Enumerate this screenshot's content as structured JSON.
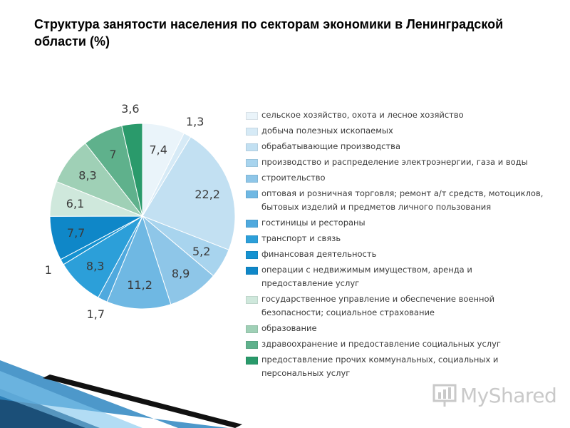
{
  "slide": {
    "title": "Структура занятости населения по секторам экономики в Ленинградской области (%)"
  },
  "watermark": {
    "text": "MyShared"
  },
  "chart_data": {
    "type": "pie",
    "title": "",
    "legend_position": "right",
    "slices": [
      {
        "label": "сельское хозяйство, охота и лесное хозяйство",
        "value": 7.4,
        "display": "7,4",
        "color": "#eaf4fa"
      },
      {
        "label": "добыча полезных ископаемых",
        "value": 1.3,
        "display": "1,3",
        "color": "#d6eaf6"
      },
      {
        "label": "обрабатывающие производства",
        "value": 22.2,
        "display": "22,2",
        "color": "#c2e0f2"
      },
      {
        "label": "производство и распределение электроэнергии, газа и воды",
        "value": 5.2,
        "display": "5,2",
        "color": "#a8d4ee"
      },
      {
        "label": "строительство",
        "value": 8.9,
        "display": "8,9",
        "color": "#8ec6e8"
      },
      {
        "label": "оптовая и розничная торговля; ремонт а/т средств, мотоциклов, бытовых изделий и предметов личного пользования",
        "value": 11.2,
        "display": "11,2",
        "color": "#6fb8e3"
      },
      {
        "label": "гостиницы и рестораны",
        "value": 1.7,
        "display": "1,7",
        "color": "#4fa9de"
      },
      {
        "label": "транспорт и связь",
        "value": 8.3,
        "display": "8,3",
        "color": "#2c9fd9"
      },
      {
        "label": "финансовая деятельность",
        "value": 1.0,
        "display": "1",
        "color": "#1592d1"
      },
      {
        "label": "операции с недвижимым имуществом, аренда и предоставление услуг",
        "value": 7.7,
        "display": "7,7",
        "color": "#0f87c8"
      },
      {
        "label": "государственное управление и обеспечение военной безопасности; социальное страхование",
        "value": 6.1,
        "display": "6,1",
        "color": "#cfe8dc"
      },
      {
        "label": "образование",
        "value": 8.3,
        "display": "8,3",
        "color": "#9fd0b6"
      },
      {
        "label": "здравоохранение и предоставление социальных услуг",
        "value": 7.0,
        "display": "7",
        "color": "#5fb18c"
      },
      {
        "label": "предоставление прочих коммунальных, социальных и персональных услуг",
        "value": 3.6,
        "display": "3,6",
        "color": "#2a9a6b"
      }
    ]
  }
}
